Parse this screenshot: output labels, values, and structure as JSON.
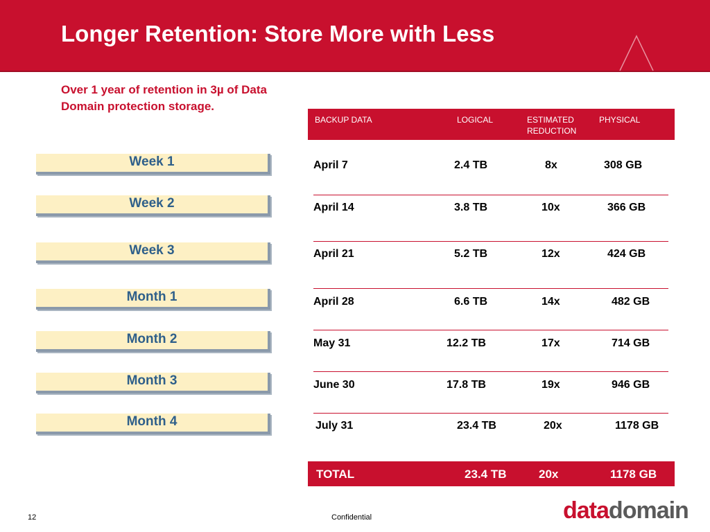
{
  "slide": {
    "title": "Longer Retention: Store More with Less",
    "subtitle": "Over 1 year of retention in 3µ of Data Domain protection storage.",
    "page_number": "12",
    "footer": "Confidential",
    "logo": {
      "part1": "data",
      "part2": "domain"
    }
  },
  "colors": {
    "brand_red": "#c8102e",
    "label_fill": "#fdf0c4",
    "label_text": "#2e5f8a"
  },
  "periods": [
    "Week 1",
    "Week 2",
    "Week 3",
    "Month 1",
    "Month 2",
    "Month 3",
    "Month 4"
  ],
  "table": {
    "headers": {
      "backup_data": "BACKUP DATA",
      "logical": "LOGICAL",
      "estimated_reduction": "ESTIMATED REDUCTION",
      "physical": "PHYSICAL"
    },
    "rows": [
      {
        "date": "April  7",
        "logical": "2.4 TB",
        "reduction": "8x",
        "physical": "308 GB"
      },
      {
        "date": "April 14",
        "logical": "3.8 TB",
        "reduction": "10x",
        "physical": "366 GB"
      },
      {
        "date": "April 21",
        "logical": "5.2 TB",
        "reduction": "12x",
        "physical": "424 GB"
      },
      {
        "date": "April  28",
        "logical": "6.6 TB",
        "reduction": "14x",
        "physical": "482 GB"
      },
      {
        "date": "May 31",
        "logical": "12.2 TB",
        "reduction": "17x",
        "physical": "714 GB"
      },
      {
        "date": "June 30",
        "logical": "17.8 TB",
        "reduction": "19x",
        "physical": "946 GB"
      },
      {
        "date": "July 31",
        "logical": "23.4 TB",
        "reduction": "20x",
        "physical": "1178 GB"
      }
    ],
    "total": {
      "label": "TOTAL",
      "logical": "23.4 TB",
      "reduction": "20x",
      "physical": "1178 GB"
    }
  }
}
